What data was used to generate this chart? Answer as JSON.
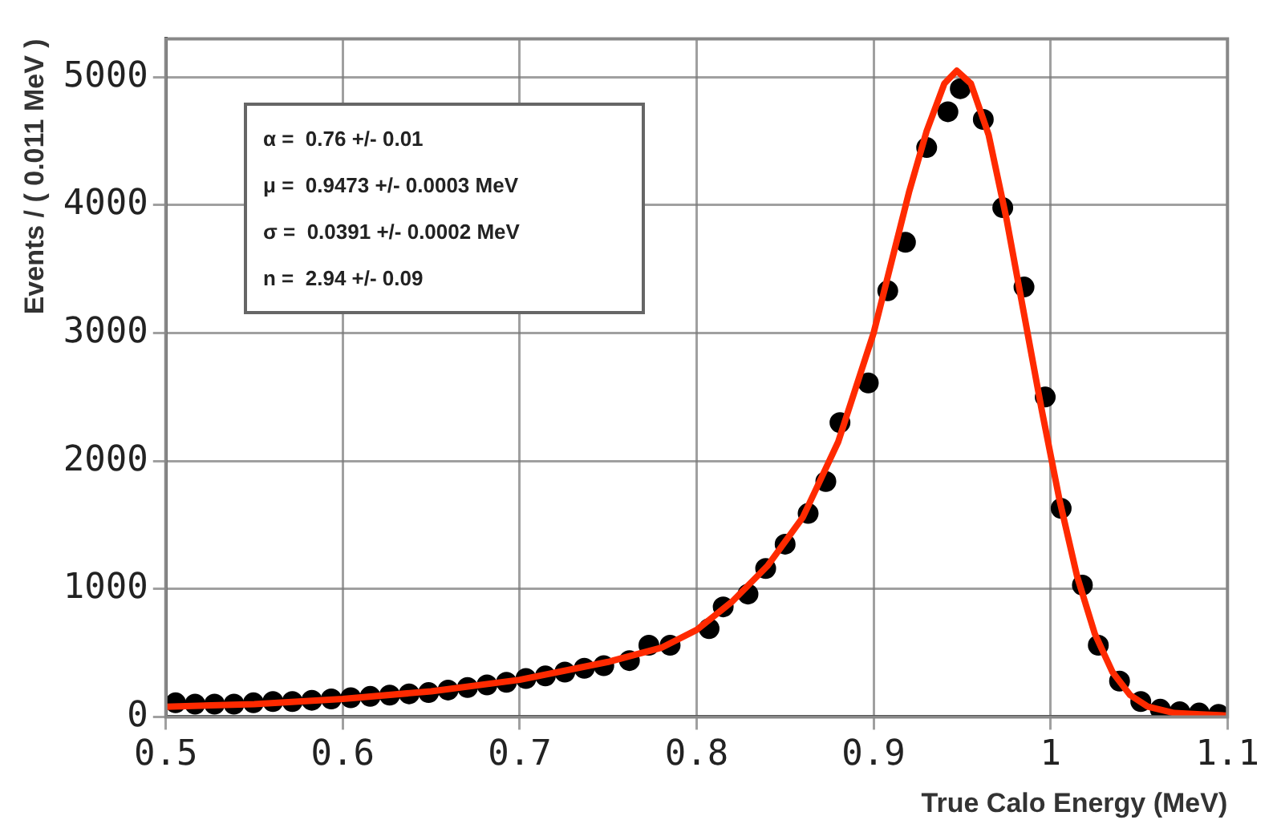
{
  "chart_data": {
    "type": "scatter",
    "xlabel": "True Calo Energy (MeV)",
    "ylabel": "Events / ( 0.011 MeV )",
    "annotations": [
      "α =  0.76 +/- 0.01",
      "μ =  0.9473 +/- 0.0003 MeV",
      "σ =  0.0391 +/- 0.0002 MeV",
      "n =  2.94 +/- 0.09"
    ],
    "xlim": [
      0.5,
      1.1
    ],
    "xticks": [
      0.5,
      0.6,
      0.7,
      0.8,
      0.9,
      1,
      1.1
    ],
    "ylim": [
      0,
      5300
    ],
    "yticks": [
      0,
      1000,
      2000,
      3000,
      4000,
      5000
    ],
    "grid": true,
    "legend": false,
    "marker": "circle",
    "series": [
      {
        "color": "#000000",
        "x": [
          0.5055,
          0.5165,
          0.5275,
          0.5385,
          0.5495,
          0.5605,
          0.5715,
          0.5825,
          0.5935,
          0.6045,
          0.6155,
          0.6265,
          0.6375,
          0.6485,
          0.6595,
          0.6705,
          0.6815,
          0.6925,
          0.7035,
          0.7145,
          0.7255,
          0.7365,
          0.7475,
          0.762,
          0.773,
          0.785,
          0.807,
          0.815,
          0.829,
          0.839,
          0.85,
          0.863,
          0.873,
          0.881,
          0.897,
          0.908,
          0.918,
          0.93,
          0.942,
          0.949,
          0.962,
          0.973,
          0.985,
          0.997,
          1.006,
          1.018,
          1.027,
          1.039,
          1.051,
          1.062,
          1.073,
          1.084,
          1.095
        ],
        "values": [
          110,
          100,
          100,
          100,
          110,
          120,
          120,
          130,
          140,
          150,
          160,
          170,
          180,
          190,
          210,
          230,
          250,
          270,
          300,
          320,
          350,
          380,
          400,
          440,
          560,
          560,
          690,
          860,
          960,
          1160,
          1350,
          1590,
          1840,
          2300,
          2610,
          3330,
          3710,
          4450,
          4730,
          4910,
          4670,
          3980,
          3360,
          2500,
          1630,
          1030,
          560,
          280,
          120,
          60,
          40,
          30,
          20
        ]
      },
      {
        "type": "line",
        "color": "#ff2a00",
        "marker": "none",
        "x": [
          0.5,
          0.55,
          0.6,
          0.65,
          0.7,
          0.75,
          0.78,
          0.8,
          0.82,
          0.84,
          0.86,
          0.88,
          0.9,
          0.91,
          0.92,
          0.93,
          0.94,
          0.947,
          0.955,
          0.965,
          0.975,
          0.985,
          0.995,
          1.005,
          1.015,
          1.025,
          1.035,
          1.045,
          1.055,
          1.07,
          1.085,
          1.1
        ],
        "values": [
          80,
          100,
          140,
          200,
          290,
          430,
          540,
          680,
          900,
          1180,
          1560,
          2150,
          3000,
          3550,
          4100,
          4580,
          4950,
          5050,
          4950,
          4550,
          3900,
          3150,
          2400,
          1700,
          1100,
          650,
          350,
          170,
          80,
          30,
          20,
          10
        ]
      }
    ]
  }
}
